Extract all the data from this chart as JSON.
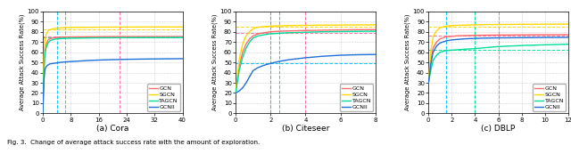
{
  "panels": [
    {
      "title": "(a) Cora",
      "xticks": [
        0,
        8,
        16,
        24,
        32,
        40
      ],
      "xlim": [
        0,
        40
      ],
      "ylim": [
        0,
        100
      ],
      "yticks": [
        0,
        10,
        20,
        30,
        40,
        50,
        60,
        70,
        80,
        90,
        100
      ],
      "vlines": [
        {
          "x": 4,
          "color": "#00BFFF"
        },
        {
          "x": 6.5,
          "color": "#00DD99"
        },
        {
          "x": 22,
          "color": "#FF6B9D"
        }
      ],
      "hlines": [
        {
          "y": 75.5,
          "color": "#FF6B9D"
        },
        {
          "y": 82.5,
          "color": "#FFD700"
        },
        {
          "y": 74.5,
          "color": "#00DD99"
        }
      ],
      "series": [
        {
          "label": "GCN",
          "color": "#FF6B6B",
          "x": [
            0,
            0.3,
            0.6,
            1,
            1.5,
            2,
            3,
            4,
            5,
            6,
            8,
            10,
            14,
            18,
            24,
            30,
            36,
            40
          ],
          "y": [
            0,
            45,
            60,
            68,
            72,
            73,
            74,
            74.5,
            74.7,
            74.8,
            74.9,
            75,
            75.1,
            75.2,
            75.3,
            75.3,
            75.3,
            75.3
          ]
        },
        {
          "label": "SGCN",
          "color": "#FFD700",
          "x": [
            0,
            0.3,
            0.6,
            1,
            1.5,
            2,
            3,
            4,
            5,
            6,
            8,
            10,
            14,
            18,
            24,
            30,
            36,
            40
          ],
          "y": [
            0,
            55,
            72,
            78,
            81,
            82,
            83,
            83.5,
            83.8,
            84,
            84.2,
            84.3,
            84.4,
            84.5,
            84.6,
            84.7,
            84.7,
            84.7
          ]
        },
        {
          "label": "TAGCN",
          "color": "#00DD99",
          "x": [
            0,
            0.3,
            0.6,
            1,
            1.5,
            2,
            3,
            4,
            5,
            6,
            8,
            10,
            14,
            18,
            24,
            30,
            36,
            40
          ],
          "y": [
            0,
            42,
            58,
            65,
            69,
            71,
            72.5,
            73,
            73.3,
            73.5,
            73.7,
            73.8,
            74,
            74.1,
            74.2,
            74.3,
            74.3,
            74.4
          ]
        },
        {
          "label": "GCNII",
          "color": "#1E6FD9",
          "x": [
            0,
            0.3,
            0.6,
            1,
            1.5,
            2,
            3,
            4,
            5,
            6,
            8,
            10,
            14,
            18,
            24,
            30,
            36,
            40
          ],
          "y": [
            0,
            32,
            43,
            46,
            47.5,
            48.5,
            49,
            49.5,
            50,
            50.3,
            50.8,
            51.2,
            52,
            52.5,
            53,
            53.3,
            53.5,
            53.6
          ]
        }
      ]
    },
    {
      "title": "(b) Citeseer",
      "xticks": [
        0,
        2,
        4,
        6,
        8
      ],
      "xlim": [
        0,
        8
      ],
      "ylim": [
        0,
        100
      ],
      "yticks": [
        0,
        10,
        20,
        30,
        40,
        50,
        60,
        70,
        80,
        90,
        100
      ],
      "vlines": [
        {
          "x": 2,
          "color": "#00BFFF"
        },
        {
          "x": 2.5,
          "color": "#00DD99"
        },
        {
          "x": 4,
          "color": "#FF6B9D"
        }
      ],
      "hlines": [
        {
          "y": 79,
          "color": "#FF6B9D"
        },
        {
          "y": 85,
          "color": "#FFD700"
        },
        {
          "y": 49.5,
          "color": "#00BFFF"
        }
      ],
      "series": [
        {
          "label": "GCN",
          "color": "#FF6B6B",
          "x": [
            0,
            0.2,
            0.4,
            0.6,
            0.8,
            1,
            1.3,
            1.6,
            2,
            2.5,
            3,
            4,
            5,
            6,
            7,
            8
          ],
          "y": [
            20,
            45,
            60,
            68,
            73,
            76,
            78,
            79,
            80,
            80.5,
            80.8,
            81.2,
            81.5,
            81.8,
            82,
            82.1
          ]
        },
        {
          "label": "SGCN",
          "color": "#FFD700",
          "x": [
            0,
            0.2,
            0.4,
            0.6,
            0.8,
            1,
            1.3,
            1.6,
            2,
            2.5,
            3,
            4,
            5,
            6,
            7,
            8
          ],
          "y": [
            20,
            52,
            68,
            76,
            80,
            83,
            84.5,
            85,
            85.5,
            85.8,
            86,
            86.3,
            86.5,
            86.6,
            86.7,
            86.8
          ]
        },
        {
          "label": "TAGCN",
          "color": "#00DD99",
          "x": [
            0,
            0.2,
            0.4,
            0.6,
            0.8,
            1,
            1.3,
            1.6,
            2,
            2.5,
            3,
            4,
            5,
            6,
            7,
            8
          ],
          "y": [
            20,
            42,
            55,
            64,
            70,
            74,
            76,
            77,
            78,
            78.5,
            79,
            79.5,
            80,
            80.2,
            80.4,
            80.5
          ]
        },
        {
          "label": "GCNII",
          "color": "#1E6FD9",
          "x": [
            0,
            0.2,
            0.4,
            0.6,
            0.8,
            1,
            1.3,
            1.6,
            2,
            2.5,
            3,
            4,
            5,
            6,
            7,
            8
          ],
          "y": [
            20,
            22,
            25,
            30,
            36,
            42,
            45,
            47,
            49,
            51,
            52.5,
            54.5,
            56,
            57,
            57.5,
            57.7
          ]
        }
      ]
    },
    {
      "title": "(c) DBLP",
      "xticks": [
        0,
        2,
        4,
        6,
        8,
        10,
        12
      ],
      "xlim": [
        0,
        12
      ],
      "ylim": [
        0,
        100
      ],
      "yticks": [
        0,
        10,
        20,
        30,
        40,
        50,
        60,
        70,
        80,
        90,
        100
      ],
      "vlines": [
        {
          "x": 1.5,
          "color": "#00BFFF"
        },
        {
          "x": 4,
          "color": "#00DD99"
        },
        {
          "x": 6,
          "color": "#FF6B9D"
        }
      ],
      "hlines": [
        {
          "y": 76,
          "color": "#FF6B9D"
        },
        {
          "y": 85,
          "color": "#FFD700"
        },
        {
          "y": 62,
          "color": "#00DD99"
        }
      ],
      "series": [
        {
          "label": "GCN",
          "color": "#FF6B6B",
          "x": [
            0,
            0.2,
            0.4,
            0.7,
            1,
            1.5,
            2,
            2.5,
            3,
            4,
            5,
            6,
            8,
            10,
            12
          ],
          "y": [
            30,
            52,
            64,
            70,
            73,
            75,
            75.5,
            76,
            76.2,
            76.5,
            76.7,
            76.8,
            77,
            77.1,
            77.2
          ]
        },
        {
          "label": "SGCN",
          "color": "#FFD700",
          "x": [
            0,
            0.2,
            0.4,
            0.7,
            1,
            1.5,
            2,
            2.5,
            3,
            4,
            5,
            6,
            8,
            10,
            12
          ],
          "y": [
            30,
            60,
            75,
            81,
            84,
            85.5,
            86,
            86.3,
            86.5,
            86.8,
            87,
            87.1,
            87.3,
            87.4,
            87.5
          ]
        },
        {
          "label": "TAGCN",
          "color": "#00DD99",
          "x": [
            0,
            0.2,
            0.4,
            0.7,
            1,
            1.5,
            2,
            2.5,
            3,
            4,
            5,
            6,
            8,
            10,
            12
          ],
          "y": [
            30,
            42,
            52,
            57,
            60,
            61.5,
            62,
            62.3,
            62.8,
            63.5,
            64.5,
            65.5,
            66.5,
            67.2,
            67.8
          ]
        },
        {
          "label": "GCNII",
          "color": "#1E6FD9",
          "x": [
            0,
            0.2,
            0.4,
            0.7,
            1,
            1.5,
            2,
            2.5,
            3,
            4,
            5,
            6,
            8,
            10,
            12
          ],
          "y": [
            30,
            48,
            60,
            66,
            69,
            71,
            72,
            72.5,
            73,
            73.5,
            73.8,
            74,
            74.2,
            74.4,
            74.5
          ]
        }
      ]
    }
  ],
  "fig_title": "ig. 3.  Change of average attack success rate with the amount of exploration.",
  "fig_title_prefix": "F",
  "ylabel": "Average Attack Success Rate(%)",
  "legend_labels": [
    "GCN",
    "SGCN",
    "TAGCN",
    "GCNII"
  ],
  "legend_colors": [
    "#FF6B6B",
    "#FFD700",
    "#00DD99",
    "#1E6FD9"
  ],
  "bg_color": "#FFFFFF",
  "grid_color": "#CCCCCC"
}
